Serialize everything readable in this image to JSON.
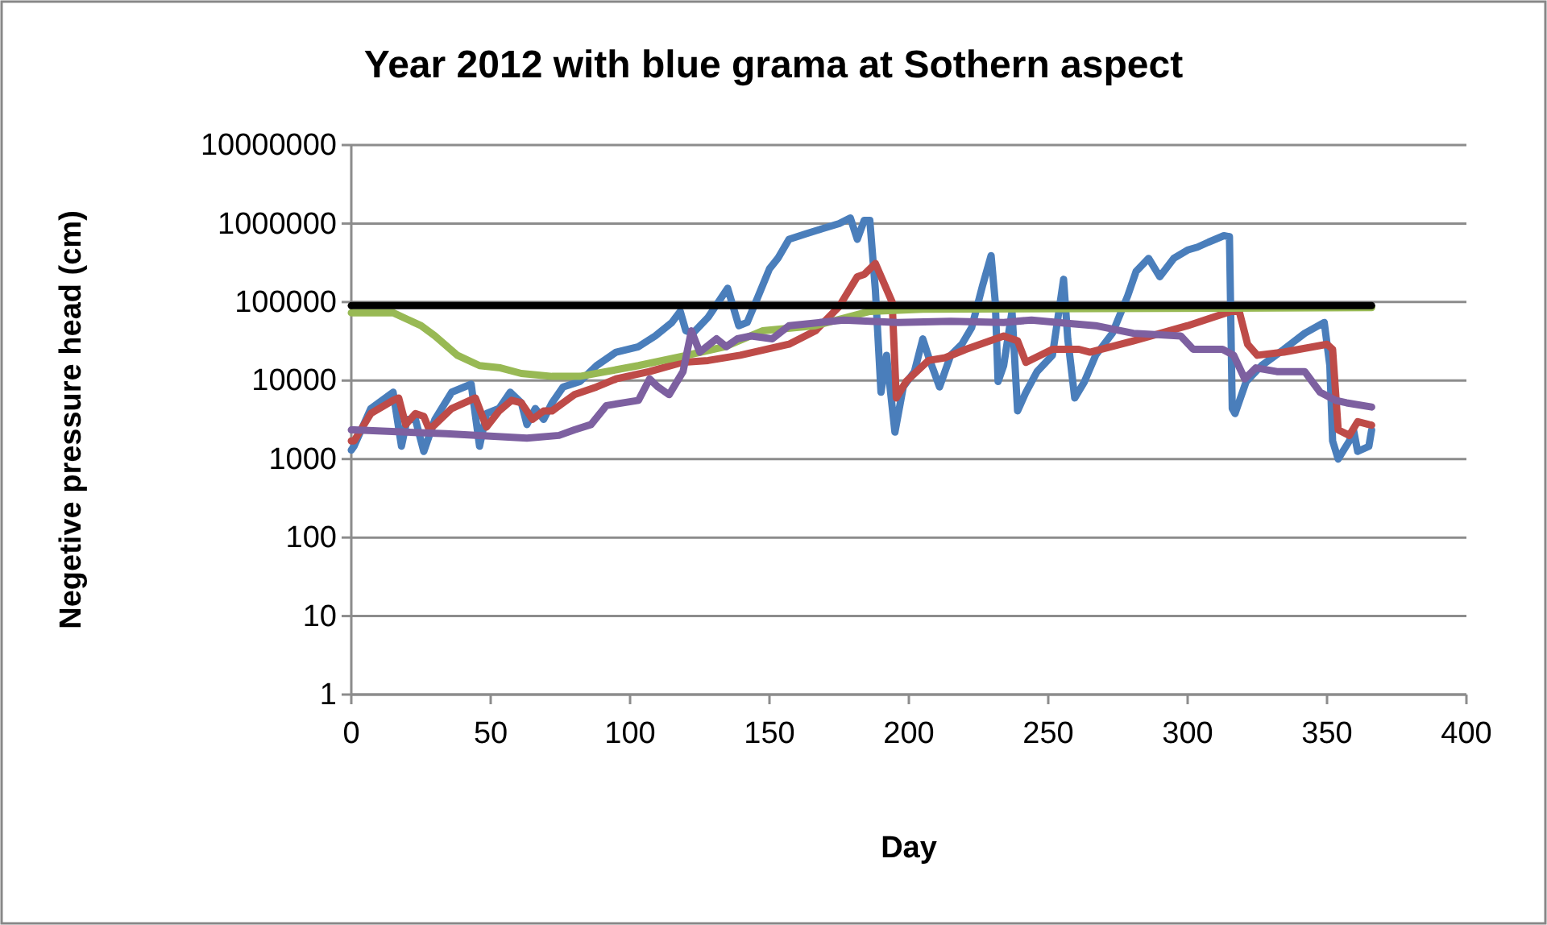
{
  "chart_data": {
    "type": "line",
    "title": "Year 2012 with blue grama at Sothern aspect",
    "xlabel": "Day",
    "ylabel": "Negetive pressure head (cm)",
    "log": true,
    "grid": "y",
    "marker": "none",
    "line_style": "solid",
    "xlim": [
      0,
      400
    ],
    "xticks": [
      0,
      50,
      100,
      150,
      200,
      250,
      300,
      350,
      400
    ],
    "ylim": [
      1,
      10000000
    ],
    "yticks": [
      1,
      10,
      100,
      1000,
      10000,
      100000,
      1000000,
      10000000
    ],
    "series": [
      {
        "color": "#4a7ebb",
        "x": [
          0,
          1,
          7,
          15,
          18,
          20,
          23,
          26,
          30,
          36,
          43,
          46,
          48.5,
          53,
          57,
          61,
          63,
          66,
          69,
          72,
          76,
          82,
          88,
          95,
          103,
          109,
          115,
          118,
          120,
          122.5,
          128,
          135,
          139,
          142,
          146,
          150,
          153,
          157,
          163,
          169,
          175,
          179,
          181.5,
          184,
          186,
          188,
          190,
          192,
          195,
          198,
          202,
          205,
          207.5,
          209,
          211,
          215,
          219,
          222.5,
          226.5,
          229.5,
          231,
          232,
          234,
          237,
          239,
          242,
          246,
          251.5,
          255.5,
          257,
          259.5,
          263,
          267,
          273,
          278.5,
          281.5,
          286,
          290,
          295,
          300,
          303.5,
          307.5,
          313,
          315,
          316,
          317,
          321,
          326.5,
          334.5,
          342,
          349,
          351,
          352,
          354,
          358,
          359.5,
          361,
          365,
          366
        ],
        "values": [
          1300,
          1460,
          4400,
          7100,
          1460,
          3200,
          3200,
          1250,
          3200,
          7100,
          9000,
          1460,
          3800,
          4400,
          7100,
          5200,
          2750,
          4400,
          3200,
          5200,
          8300,
          9700,
          15500,
          23000,
          27000,
          37000,
          55000,
          76000,
          43000,
          40000,
          64000,
          150000,
          50000,
          55000,
          120000,
          265000,
          360000,
          630000,
          740000,
          860000,
          1000000,
          1180000,
          630000,
          1100000,
          1100000,
          140000,
          7100,
          21000,
          2200,
          8300,
          13000,
          34000,
          18000,
          13000,
          8300,
          21000,
          29000,
          47000,
          165000,
          390000,
          100000,
          9700,
          15500,
          76000,
          4100,
          7100,
          13000,
          21000,
          195000,
          34000,
          6000,
          9700,
          21000,
          40000,
          120000,
          245000,
          360000,
          210000,
          360000,
          460000,
          500000,
          580000,
          700000,
          680000,
          4400,
          3800,
          9700,
          15500,
          25000,
          40000,
          55000,
          15500,
          1700,
          1000,
          1700,
          2350,
          1250,
          1450,
          2350
        ]
      },
      {
        "color": "#be4b48",
        "x": [
          0,
          1,
          7,
          15,
          17,
          19.5,
          23,
          26,
          28,
          36,
          44.5,
          48.5,
          53,
          57.5,
          61,
          65,
          69,
          72,
          80,
          88,
          95,
          107,
          118.5,
          128,
          139.5,
          157,
          166.5,
          175,
          181.5,
          184,
          188,
          194,
          195.5,
          199,
          207,
          213,
          220.5,
          234,
          239,
          242,
          251.5,
          261,
          265,
          280.5,
          300,
          315.5,
          318.5,
          321.5,
          325,
          334.5,
          350,
          352,
          354,
          358,
          361,
          365,
          366
        ],
        "values": [
          1700,
          1700,
          3800,
          5600,
          6000,
          2750,
          3800,
          3500,
          2350,
          4400,
          6000,
          2550,
          4100,
          5600,
          5200,
          3200,
          4100,
          4100,
          6600,
          8300,
          10500,
          13000,
          17000,
          18000,
          21000,
          29000,
          43000,
          88000,
          210000,
          225000,
          310000,
          100000,
          6000,
          9700,
          18000,
          19500,
          25000,
          37000,
          32000,
          17000,
          25000,
          25000,
          23000,
          32000,
          50000,
          76000,
          76000,
          29000,
          21000,
          23000,
          29000,
          25000,
          2350,
          2000,
          3000,
          2750,
          2700
        ]
      },
      {
        "color": "#98b954",
        "x": [
          0,
          1,
          15,
          25,
          30,
          38,
          46,
          53.5,
          61,
          72,
          82,
          91.5,
          103,
          120.5,
          134,
          147.5,
          166.5,
          186,
          205,
          366
        ],
        "values": [
          73000,
          73000,
          73000,
          50000,
          37000,
          21000,
          15500,
          14500,
          12300,
          11300,
          11300,
          13000,
          15500,
          21000,
          27000,
          43000,
          50000,
          76000,
          81000,
          85000
        ]
      },
      {
        "color": "#7d60a0",
        "x": [
          0,
          1,
          34,
          63,
          74.5,
          80,
          86,
          91.5,
          103,
          107,
          110,
          114,
          119,
          122,
          125,
          131,
          134.5,
          138.5,
          143.5,
          151,
          157,
          176.5,
          196,
          215,
          234,
          244,
          253.5,
          267,
          280.5,
          297.5,
          302,
          312.5,
          316.5,
          320.5,
          324.5,
          332,
          342,
          347.5,
          353,
          357,
          366
        ],
        "values": [
          2350,
          2350,
          2100,
          1850,
          2000,
          2350,
          2750,
          4800,
          5600,
          10500,
          8300,
          6600,
          13000,
          43000,
          23000,
          34000,
          27000,
          34000,
          37000,
          34000,
          50000,
          59000,
          55000,
          57000,
          55000,
          59000,
          55000,
          50000,
          40000,
          37000,
          25000,
          25000,
          21000,
          10500,
          14500,
          13000,
          13000,
          7100,
          5600,
          5200,
          4600
        ]
      },
      {
        "color": "#000000",
        "x": [
          0,
          366
        ],
        "values": [
          90000,
          90000
        ]
      }
    ]
  }
}
